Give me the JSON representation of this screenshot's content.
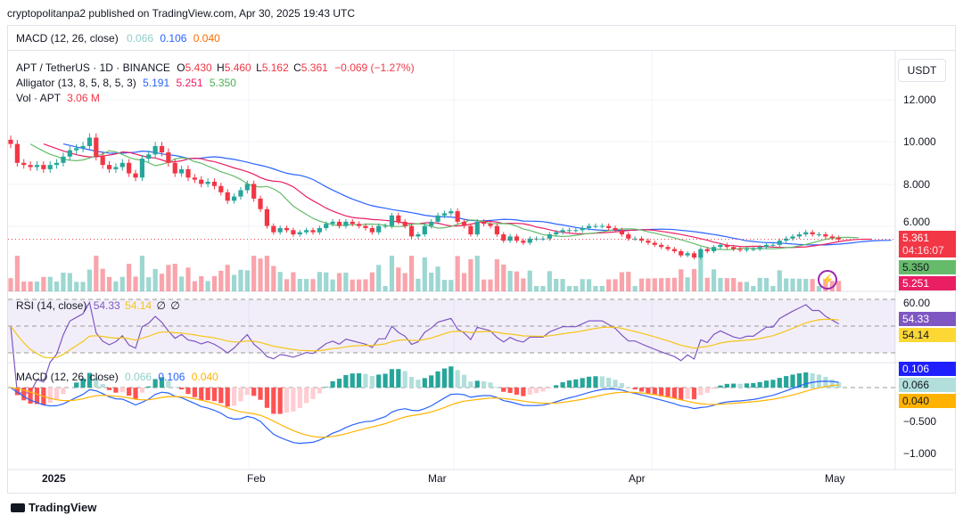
{
  "header": "cryptopolitanpa2 published on TradingView.com, Apr 30, 2025 19:43 UTC",
  "top_macd": {
    "name": "MACD (12, 26, close)",
    "v1": "0.066",
    "v2": "0.106",
    "v3": "0.040"
  },
  "legend": {
    "symbol": "APT / TetherUS · 1D · BINANCE",
    "o_label": "O",
    "o": "5.430",
    "h_label": "H",
    "h": "5.460",
    "l_label": "L",
    "l": "5.162",
    "c_label": "C",
    "c": "5.361",
    "chg": "−0.069 (−1.27%)",
    "alligator": "Alligator (13, 8, 5, 8, 5, 3)",
    "jaw": "5.191",
    "teeth": "5.251",
    "lips": "5.350",
    "vol": "Vol · APT",
    "vol_v": "3.06 M"
  },
  "currency": "USDT",
  "price_ticks": [
    "12.000",
    "10.000",
    "8.000",
    "6.000"
  ],
  "price_labels": {
    "last": "5.361",
    "countdown": "04:16:07",
    "lips": "5.350",
    "teeth": "5.251"
  },
  "rsi": {
    "name": "RSI (14, close)",
    "v": "54.33",
    "ma": "54.14",
    "x1": "∅",
    "x2": "∅",
    "tick": "60.00"
  },
  "macd": {
    "name": "MACD (12, 26, close)",
    "hist": "0.066",
    "macd": "0.106",
    "signal": "0.040",
    "ticks": [
      "−0.500",
      "−1.000"
    ]
  },
  "time_ticks": [
    "2025",
    "Feb",
    "Mar",
    "Apr",
    "May"
  ],
  "footer": "TradingView",
  "colors": {
    "up": "#26a69a",
    "down": "#f23645",
    "jaw": "#2962ff",
    "teeth": "#e91e63",
    "lips": "#66bb6a",
    "rsi": "#7e57c2",
    "macd": "#2962ff",
    "signal": "#ffb300"
  },
  "chart_data": {
    "type": "candlestick",
    "start_date": "2024-12-25",
    "end_date": "2025-04-30",
    "closes": [
      9.9,
      9.0,
      8.9,
      8.8,
      8.9,
      8.7,
      8.9,
      9.0,
      9.3,
      9.6,
      9.7,
      9.8,
      10.2,
      9.3,
      8.9,
      8.7,
      8.8,
      9.0,
      8.5,
      8.3,
      9.2,
      9.4,
      9.8,
      9.5,
      9.0,
      8.5,
      8.7,
      8.3,
      8.2,
      8.0,
      8.1,
      7.9,
      7.6,
      7.2,
      7.4,
      7.7,
      8.0,
      7.3,
      6.8,
      6.0,
      5.7,
      5.9,
      5.8,
      5.6,
      5.7,
      5.8,
      5.7,
      5.9,
      6.1,
      6.2,
      6.0,
      6.2,
      6.1,
      6.0,
      5.9,
      5.7,
      6.0,
      6.0,
      6.5,
      6.2,
      6.0,
      5.5,
      5.6,
      6.0,
      6.2,
      6.5,
      6.6,
      6.7,
      6.2,
      6.0,
      5.6,
      6.2,
      6.1,
      6.0,
      5.6,
      5.3,
      5.5,
      5.3,
      5.2,
      5.4,
      5.4,
      5.4,
      5.6,
      5.7,
      5.8,
      5.8,
      5.8,
      5.9,
      6.0,
      6.0,
      6.0,
      5.9,
      5.8,
      5.6,
      5.4,
      5.4,
      5.3,
      5.2,
      5.1,
      5.0,
      4.9,
      4.8,
      4.6,
      4.7,
      4.5,
      4.9,
      4.8,
      5.0,
      5.1,
      5.0,
      4.9,
      4.85,
      4.9,
      4.9,
      5.0,
      5.1,
      5.1,
      5.3,
      5.4,
      5.5,
      5.6,
      5.7,
      5.6,
      5.6,
      5.5,
      5.43,
      5.361
    ],
    "price_range": [
      4.2,
      13.0
    ]
  }
}
